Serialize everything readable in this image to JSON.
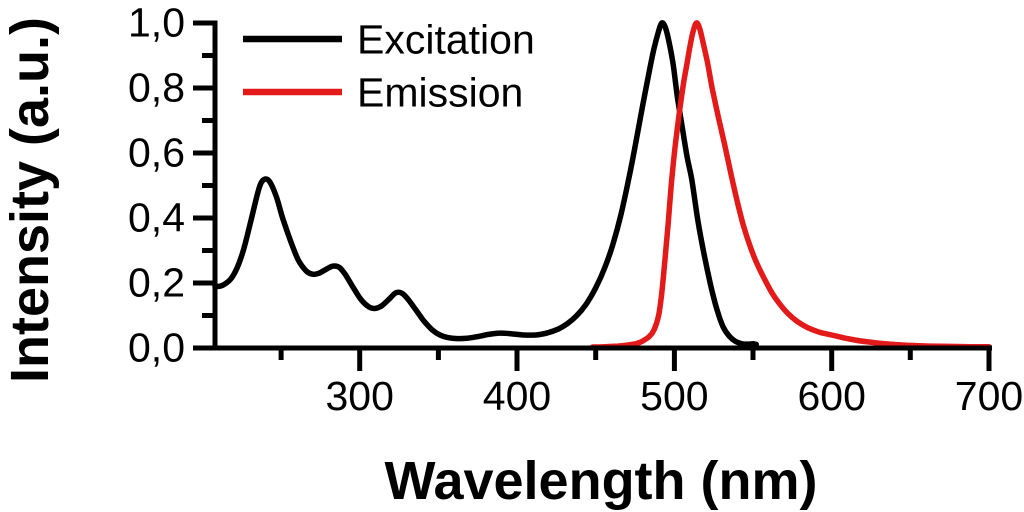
{
  "figure": {
    "background": "#ffffff"
  },
  "chart_data": {
    "type": "line",
    "title": "",
    "xlabel": "Wavelength (nm)",
    "ylabel": "Intensity (a.u.)",
    "xlim": [
      208,
      700
    ],
    "ylim": [
      0,
      1.0
    ],
    "grid": false,
    "axis_color": "#000000",
    "tick_style": "outward",
    "decimal_separator": ",",
    "x_ticks": [
      {
        "value": 300,
        "label": "300"
      },
      {
        "value": 400,
        "label": "400"
      },
      {
        "value": 500,
        "label": "500"
      },
      {
        "value": 600,
        "label": "600"
      },
      {
        "value": 700,
        "label": "700"
      }
    ],
    "x_minor_ticks": [
      250,
      350,
      450,
      550,
      650
    ],
    "y_ticks": [
      {
        "value": 0.0,
        "label": "0,0"
      },
      {
        "value": 0.2,
        "label": "0,2"
      },
      {
        "value": 0.4,
        "label": "0,4"
      },
      {
        "value": 0.6,
        "label": "0,6"
      },
      {
        "value": 0.8,
        "label": "0,8"
      },
      {
        "value": 1.0,
        "label": "1,0"
      }
    ],
    "y_minor_ticks": [
      0.1,
      0.3,
      0.5,
      0.7,
      0.9
    ],
    "legend": {
      "position": "top-left-inside",
      "entries": [
        {
          "name": "Excitation",
          "color": "#000000"
        },
        {
          "name": "Emission",
          "color": "#e31a1a"
        }
      ]
    },
    "series": [
      {
        "name": "Excitation",
        "color": "#000000",
        "peak_nm": 492,
        "points": [
          [
            208,
            0.19
          ],
          [
            211,
            0.19
          ],
          [
            214,
            0.196
          ],
          [
            218,
            0.212
          ],
          [
            222,
            0.246
          ],
          [
            226,
            0.3
          ],
          [
            230,
            0.375
          ],
          [
            234,
            0.455
          ],
          [
            237,
            0.505
          ],
          [
            240,
            0.52
          ],
          [
            243,
            0.51
          ],
          [
            247,
            0.465
          ],
          [
            251,
            0.4
          ],
          [
            256,
            0.33
          ],
          [
            261,
            0.27
          ],
          [
            266,
            0.237
          ],
          [
            270,
            0.227
          ],
          [
            274,
            0.23
          ],
          [
            279,
            0.243
          ],
          [
            283,
            0.252
          ],
          [
            287,
            0.248
          ],
          [
            291,
            0.225
          ],
          [
            296,
            0.185
          ],
          [
            301,
            0.148
          ],
          [
            306,
            0.126
          ],
          [
            310,
            0.122
          ],
          [
            314,
            0.13
          ],
          [
            319,
            0.152
          ],
          [
            323,
            0.17
          ],
          [
            327,
            0.168
          ],
          [
            331,
            0.148
          ],
          [
            336,
            0.115
          ],
          [
            341,
            0.082
          ],
          [
            346,
            0.056
          ],
          [
            351,
            0.04
          ],
          [
            356,
            0.032
          ],
          [
            362,
            0.029
          ],
          [
            368,
            0.03
          ],
          [
            375,
            0.035
          ],
          [
            382,
            0.042
          ],
          [
            389,
            0.046
          ],
          [
            396,
            0.044
          ],
          [
            404,
            0.04
          ],
          [
            412,
            0.04
          ],
          [
            419,
            0.046
          ],
          [
            426,
            0.058
          ],
          [
            432,
            0.075
          ],
          [
            438,
            0.1
          ],
          [
            444,
            0.135
          ],
          [
            450,
            0.185
          ],
          [
            456,
            0.25
          ],
          [
            461,
            0.32
          ],
          [
            466,
            0.41
          ],
          [
            471,
            0.52
          ],
          [
            476,
            0.645
          ],
          [
            480,
            0.75
          ],
          [
            484,
            0.85
          ],
          [
            487,
            0.92
          ],
          [
            490,
            0.975
          ],
          [
            492,
            1.0
          ],
          [
            494,
            0.99
          ],
          [
            496,
            0.955
          ],
          [
            499,
            0.88
          ],
          [
            502,
            0.77
          ],
          [
            505,
            0.68
          ],
          [
            508,
            0.59
          ],
          [
            511,
            0.52
          ],
          [
            515,
            0.39
          ],
          [
            519,
            0.285
          ],
          [
            523,
            0.195
          ],
          [
            527,
            0.12
          ],
          [
            531,
            0.065
          ],
          [
            535,
            0.036
          ],
          [
            539,
            0.02
          ],
          [
            543,
            0.013
          ],
          [
            547,
            0.012
          ],
          [
            550,
            0.013
          ],
          [
            552,
            0.011
          ]
        ]
      },
      {
        "name": "Emission",
        "color": "#e31a1a",
        "peak_nm": 514,
        "points": [
          [
            448,
            0.003
          ],
          [
            456,
            0.004
          ],
          [
            464,
            0.006
          ],
          [
            470,
            0.009
          ],
          [
            476,
            0.014
          ],
          [
            480,
            0.022
          ],
          [
            484,
            0.035
          ],
          [
            487,
            0.055
          ],
          [
            490,
            0.1
          ],
          [
            492,
            0.17
          ],
          [
            494,
            0.27
          ],
          [
            496,
            0.38
          ],
          [
            498,
            0.5
          ],
          [
            500,
            0.6
          ],
          [
            502,
            0.68
          ],
          [
            504,
            0.755
          ],
          [
            506,
            0.82
          ],
          [
            508,
            0.875
          ],
          [
            510,
            0.93
          ],
          [
            512,
            0.975
          ],
          [
            514,
            1.0
          ],
          [
            516,
            0.985
          ],
          [
            518,
            0.945
          ],
          [
            521,
            0.88
          ],
          [
            524,
            0.8
          ],
          [
            528,
            0.71
          ],
          [
            532,
            0.625
          ],
          [
            536,
            0.535
          ],
          [
            540,
            0.45
          ],
          [
            544,
            0.375
          ],
          [
            548,
            0.315
          ],
          [
            552,
            0.265
          ],
          [
            557,
            0.215
          ],
          [
            562,
            0.17
          ],
          [
            567,
            0.135
          ],
          [
            572,
            0.107
          ],
          [
            578,
            0.082
          ],
          [
            585,
            0.062
          ],
          [
            592,
            0.049
          ],
          [
            600,
            0.04
          ],
          [
            609,
            0.03
          ],
          [
            618,
            0.022
          ],
          [
            628,
            0.016
          ],
          [
            639,
            0.011
          ],
          [
            650,
            0.008
          ],
          [
            662,
            0.006
          ],
          [
            675,
            0.005
          ],
          [
            688,
            0.004
          ],
          [
            700,
            0.004
          ]
        ]
      }
    ]
  }
}
